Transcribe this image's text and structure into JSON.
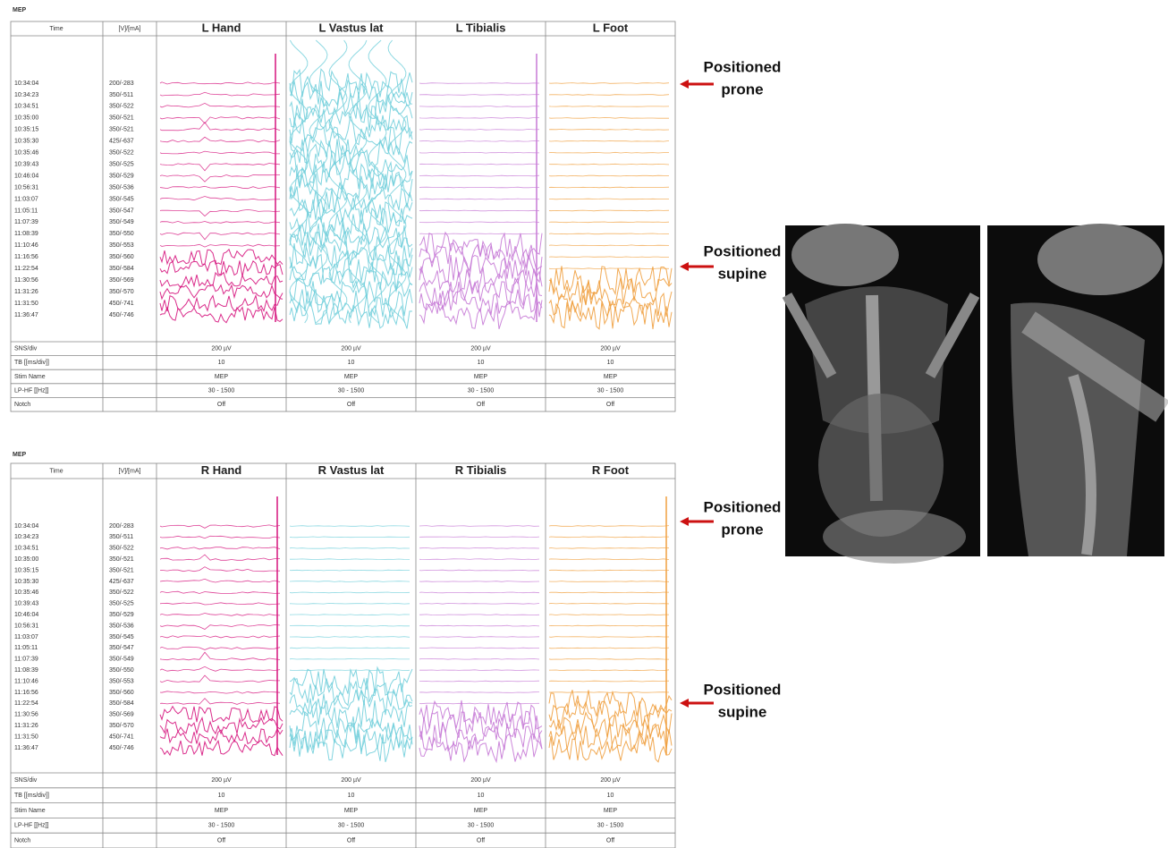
{
  "panels": [
    {
      "label": "MEP",
      "header": {
        "time": "Time",
        "stim": "[V]/[mA]",
        "channels": [
          "L Hand",
          "L Vastus lat",
          "L Tibialis",
          "L Foot"
        ]
      },
      "rows": [
        {
          "time": "10:34:04",
          "stim": "200/-283"
        },
        {
          "time": "10:34:23",
          "stim": "350/-511"
        },
        {
          "time": "10:34:51",
          "stim": "350/-522"
        },
        {
          "time": "10:35:00",
          "stim": "350/-521"
        },
        {
          "time": "10:35:15",
          "stim": "350/-521"
        },
        {
          "time": "10:35:30",
          "stim": "425/-637"
        },
        {
          "time": "10:35:46",
          "stim": "350/-522"
        },
        {
          "time": "10:39:43",
          "stim": "350/-525"
        },
        {
          "time": "10:46:04",
          "stim": "350/-529"
        },
        {
          "time": "10:56:31",
          "stim": "350/-536"
        },
        {
          "time": "11:03:07",
          "stim": "350/-545"
        },
        {
          "time": "11:05:11",
          "stim": "350/-547"
        },
        {
          "time": "11:07:39",
          "stim": "350/-549"
        },
        {
          "time": "11:08:39",
          "stim": "350/-550"
        },
        {
          "time": "11:10:46",
          "stim": "350/-553"
        },
        {
          "time": "11:16:56",
          "stim": "350/-560"
        },
        {
          "time": "11:22:54",
          "stim": "350/-584"
        },
        {
          "time": "11:30:56",
          "stim": "350/-569"
        },
        {
          "time": "11:31:26",
          "stim": "350/-570"
        },
        {
          "time": "11:31:50",
          "stim": "450/-741"
        },
        {
          "time": "11:36:47",
          "stim": "450/-746"
        }
      ],
      "settings": [
        {
          "label": "SNS/div",
          "values": [
            "200 µV",
            "200 µV",
            "200 µV",
            "200 µV"
          ]
        },
        {
          "label": "TB [[ms/div]]",
          "values": [
            "10",
            "10",
            "10",
            "10"
          ]
        },
        {
          "label": "Stim Name",
          "values": [
            "MEP",
            "MEP",
            "MEP",
            "MEP"
          ]
        },
        {
          "label": "LP-HF [[Hz]]",
          "values": [
            "30 - 1500",
            "30 - 1500",
            "30 - 1500",
            "30 - 1500"
          ]
        },
        {
          "label": "Notch",
          "values": [
            "Off",
            "Off",
            "Off",
            "Off"
          ]
        }
      ],
      "annotations": [
        [
          "Positioned",
          "prone"
        ],
        [
          "Positioned",
          "supine"
        ]
      ]
    },
    {
      "label": "MEP",
      "header": {
        "time": "Time",
        "stim": "[V]/[mA]",
        "channels": [
          "R Hand",
          "R Vastus lat",
          "R Tibialis",
          "R Foot"
        ]
      },
      "rows": [
        {
          "time": "10:34:04",
          "stim": "200/-283"
        },
        {
          "time": "10:34:23",
          "stim": "350/-511"
        },
        {
          "time": "10:34:51",
          "stim": "350/-522"
        },
        {
          "time": "10:35:00",
          "stim": "350/-521"
        },
        {
          "time": "10:35:15",
          "stim": "350/-521"
        },
        {
          "time": "10:35:30",
          "stim": "425/-637"
        },
        {
          "time": "10:35:46",
          "stim": "350/-522"
        },
        {
          "time": "10:39:43",
          "stim": "350/-525"
        },
        {
          "time": "10:46:04",
          "stim": "350/-529"
        },
        {
          "time": "10:56:31",
          "stim": "350/-536"
        },
        {
          "time": "11:03:07",
          "stim": "350/-545"
        },
        {
          "time": "11:05:11",
          "stim": "350/-547"
        },
        {
          "time": "11:07:39",
          "stim": "350/-549"
        },
        {
          "time": "11:08:39",
          "stim": "350/-550"
        },
        {
          "time": "11:10:46",
          "stim": "350/-553"
        },
        {
          "time": "11:16:56",
          "stim": "350/-560"
        },
        {
          "time": "11:22:54",
          "stim": "350/-584"
        },
        {
          "time": "11:30:56",
          "stim": "350/-569"
        },
        {
          "time": "11:31:26",
          "stim": "350/-570"
        },
        {
          "time": "11:31:50",
          "stim": "450/-741"
        },
        {
          "time": "11:36:47",
          "stim": "450/-746"
        }
      ],
      "settings": [
        {
          "label": "SNS/div",
          "values": [
            "200 µV",
            "200 µV",
            "200 µV",
            "200 µV"
          ]
        },
        {
          "label": "TB [[ms/div]]",
          "values": [
            "10",
            "10",
            "10",
            "10"
          ]
        },
        {
          "label": "Stim Name",
          "values": [
            "MEP",
            "MEP",
            "MEP",
            "MEP"
          ]
        },
        {
          "label": "LP-HF [[Hz]]",
          "values": [
            "30 - 1500",
            "30 - 1500",
            "30 - 1500",
            "30 - 1500"
          ]
        },
        {
          "label": "Notch",
          "values": [
            "Off",
            "Off",
            "Off",
            "Off"
          ]
        }
      ],
      "annotations": [
        [
          "Positioned",
          "prone"
        ],
        [
          "Positioned",
          "supine"
        ]
      ]
    }
  ]
}
